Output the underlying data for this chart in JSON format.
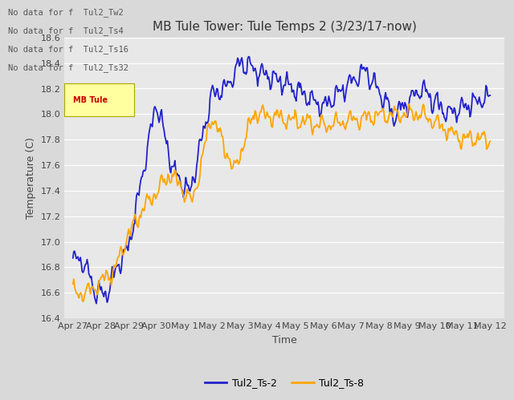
{
  "title": "MB Tule Tower: Tule Temps 2 (3/23/17-now)",
  "xlabel": "Time",
  "ylabel": "Temperature (C)",
  "ylim": [
    16.4,
    18.6
  ],
  "xlim": [
    -0.3,
    15.5
  ],
  "line1_color": "#2222cc",
  "line2_color": "#ffa500",
  "line1_label": "Tul2_Ts-2",
  "line2_label": "Tul2_Ts-8",
  "no_data_lines": [
    "No data for f  Tul2_Tw2",
    "No data for f  Tul2_Ts4",
    "No data for f  Tul2_Ts16",
    "No data for f  Tul2_Ts32"
  ],
  "xtick_labels": [
    "Apr 27",
    "Apr 28",
    "Apr 29",
    "Apr 30",
    "May 1",
    "May 2",
    "May 3",
    "May 4",
    "May 5",
    "May 6",
    "May 7",
    "May 8",
    "May 9",
    "May 10",
    "May 11",
    "May 12"
  ],
  "xtick_positions": [
    0,
    1,
    2,
    3,
    4,
    5,
    6,
    7,
    8,
    9,
    10,
    11,
    12,
    13,
    14,
    15
  ],
  "ytick_labels": [
    "16.4",
    "16.6",
    "16.8",
    "17.0",
    "17.2",
    "17.4",
    "17.6",
    "17.8",
    "18.0",
    "18.2",
    "18.4",
    "18.6"
  ],
  "ytick_values": [
    16.4,
    16.6,
    16.8,
    17.0,
    17.2,
    17.4,
    17.6,
    17.8,
    18.0,
    18.2,
    18.4,
    18.6
  ],
  "fig_facecolor": "#d9d9d9",
  "ax_facecolor": "#e8e8e8",
  "title_fontsize": 11,
  "axis_label_fontsize": 9,
  "tick_fontsize": 8,
  "legend_fontsize": 9
}
